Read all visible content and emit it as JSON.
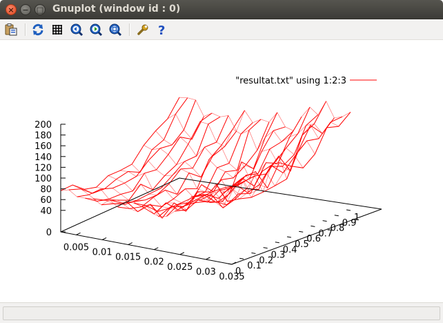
{
  "window": {
    "title": "Gnuplot (window id : 0)",
    "close_glyph": "×",
    "minimize_glyph": "−",
    "maximize_glyph": "□"
  },
  "toolbar": {
    "icons": [
      "copy-to-clipboard-icon",
      "replot-icon",
      "grid-icon",
      "previous-zoom-icon",
      "next-zoom-icon",
      "autoscale-icon",
      "settings-icon",
      "help-icon"
    ]
  },
  "chart_data": {
    "type": "surface",
    "title": "",
    "legend": {
      "label": "\"resultat.txt\" using 1:2:3",
      "color": "#ff0000",
      "placement": "top-right"
    },
    "x_ticks": [
      "0.005",
      "0.01",
      "0.015",
      "0.02",
      "0.025",
      "0.03",
      "0.035"
    ],
    "y_ticks": [
      "0",
      "0.1",
      "0.2",
      "0.3",
      "0.4",
      "0.5",
      "0.6",
      "0.7",
      "0.8",
      "0.9",
      "1"
    ],
    "z_ticks": [
      "0",
      "40",
      "60",
      "80",
      "100",
      "120",
      "140",
      "160",
      "180",
      "200"
    ],
    "x_range": [
      0.002,
      0.035
    ],
    "y_range": [
      0,
      1
    ],
    "z_range": [
      0,
      200
    ],
    "grid": false,
    "line_color": "#ff0000",
    "axis_color": "#000000"
  }
}
